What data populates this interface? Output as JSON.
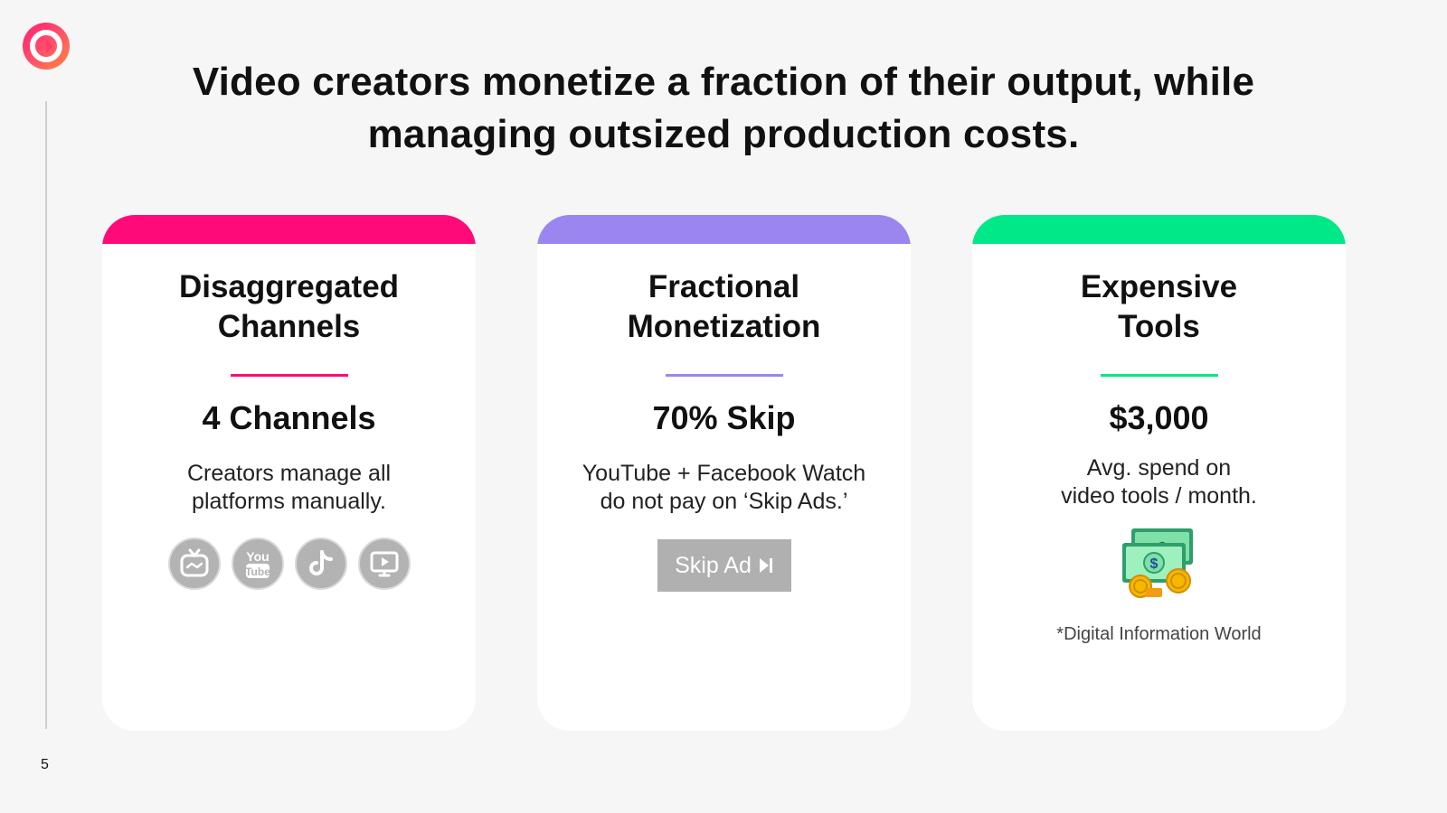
{
  "page": {
    "headline": "Video creators monetize a fraction of their output, while managing outsized production costs.",
    "page_number": "5",
    "logo_icon": "brand-c-logo-icon"
  },
  "cards": [
    {
      "accent": "#ff0a78",
      "title": "Disaggregated\nChannels",
      "stat": "4 Channels",
      "description": "Creators manage all\nplatforms manually.",
      "platform_icons": [
        "igtv-icon",
        "youtube-icon",
        "tiktok-icon",
        "facebook-watch-icon"
      ],
      "platform_labels": {
        "youtube_top": "You",
        "youtube_bottom": "Tube"
      }
    },
    {
      "accent": "#9b86f0",
      "title": "Fractional\nMonetization",
      "stat": "70% Skip",
      "description": "YouTube + Facebook Watch\ndo not pay on ‘Skip Ads.’",
      "button_label": "Skip Ad",
      "button_icon": "skip-next-icon"
    },
    {
      "accent": "#00e887",
      "title": "Expensive\nTools",
      "stat": "$3,000",
      "description": "Avg. spend on\nvideo tools / month.",
      "illustration_icon": "money-bills-coins-icon",
      "money_symbol": "$",
      "note": "*Digital Information World"
    }
  ]
}
